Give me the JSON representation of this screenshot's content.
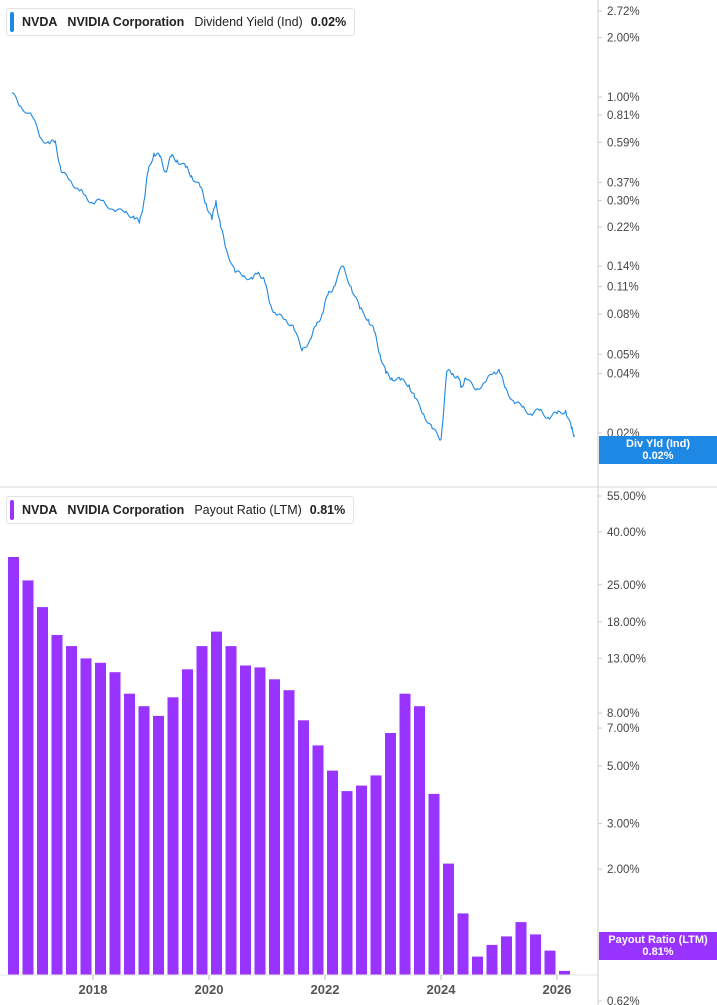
{
  "colors": {
    "yield_line": "#1e88e5",
    "payout_bar": "#9933ff",
    "axis": "#cccccc",
    "divider": "#d9d9d9"
  },
  "panel_top": {
    "ticker": "NVDA",
    "company": "NVIDIA Corporation",
    "metric": "Dividend Yield (Ind)",
    "value": "0.02%",
    "tag_label": "Div Yld (Ind)",
    "tag_value": "0.02%"
  },
  "panel_bottom": {
    "ticker": "NVDA",
    "company": "NVIDIA Corporation",
    "metric": "Payout Ratio (LTM)",
    "value": "0.81%",
    "tag_label": "Payout Ratio (LTM)",
    "tag_value": "0.81%"
  },
  "chart_data": [
    {
      "type": "line",
      "title": "NVDA NVIDIA Corporation Dividend Yield (Ind)",
      "yscale": "log",
      "y_ticks": [
        {
          "value": 2.72,
          "label": "2.72%"
        },
        {
          "value": 2.0,
          "label": "2.00%"
        },
        {
          "value": 1.0,
          "label": "1.00%"
        },
        {
          "value": 0.81,
          "label": "0.81%"
        },
        {
          "value": 0.59,
          "label": "0.59%"
        },
        {
          "value": 0.37,
          "label": "0.37%"
        },
        {
          "value": 0.3,
          "label": "0.30%"
        },
        {
          "value": 0.22,
          "label": "0.22%"
        },
        {
          "value": 0.14,
          "label": "0.14%"
        },
        {
          "value": 0.11,
          "label": "0.11%"
        },
        {
          "value": 0.08,
          "label": "0.08%"
        },
        {
          "value": 0.05,
          "label": "0.05%"
        },
        {
          "value": 0.04,
          "label": "0.04%"
        },
        {
          "value": 0.02,
          "label": "0.02%"
        }
      ],
      "series": [
        {
          "x": [
            2016.6,
            2016.75,
            2016.95,
            2017.1,
            2017.25,
            2017.35,
            2017.45,
            2017.6,
            2017.75,
            2017.85,
            2018.0,
            2018.15,
            2018.35,
            2018.55,
            2018.7,
            2018.8,
            2018.88,
            2018.95,
            2019.05,
            2019.15,
            2019.25,
            2019.35,
            2019.45,
            2019.6,
            2019.7,
            2019.85,
            2019.95,
            2020.05,
            2020.12,
            2020.2,
            2020.3,
            2020.45,
            2020.6,
            2020.75,
            2020.85,
            2020.95,
            2021.05,
            2021.15,
            2021.3,
            2021.45,
            2021.6,
            2021.75,
            2021.85,
            2021.95,
            2022.05,
            2022.15,
            2022.3,
            2022.45,
            2022.6,
            2022.75,
            2022.85,
            2022.95,
            2023.05,
            2023.15,
            2023.3,
            2023.45,
            2023.55,
            2023.7,
            2023.85,
            2024.0,
            2024.1,
            2024.2,
            2024.3,
            2024.35,
            2024.42,
            2024.6,
            2024.75,
            2024.9,
            2025.0,
            2025.1,
            2025.25,
            2025.4,
            2025.55,
            2025.7,
            2025.85,
            2026.0,
            2026.15,
            2026.25,
            2026.3
          ],
          "y": [
            1.05,
            0.9,
            0.8,
            0.62,
            0.58,
            0.6,
            0.42,
            0.38,
            0.34,
            0.32,
            0.29,
            0.3,
            0.27,
            0.26,
            0.25,
            0.23,
            0.3,
            0.42,
            0.52,
            0.5,
            0.42,
            0.5,
            0.48,
            0.44,
            0.4,
            0.35,
            0.29,
            0.24,
            0.3,
            0.22,
            0.17,
            0.13,
            0.125,
            0.12,
            0.13,
            0.12,
            0.09,
            0.08,
            0.075,
            0.07,
            0.052,
            0.06,
            0.07,
            0.08,
            0.1,
            0.11,
            0.14,
            0.11,
            0.085,
            0.075,
            0.065,
            0.05,
            0.04,
            0.038,
            0.037,
            0.035,
            0.03,
            0.025,
            0.021,
            0.0185,
            0.041,
            0.04,
            0.038,
            0.034,
            0.038,
            0.033,
            0.036,
            0.04,
            0.042,
            0.034,
            0.029,
            0.027,
            0.025,
            0.026,
            0.024,
            0.025,
            0.026,
            0.021,
            0.0195
          ]
        }
      ]
    },
    {
      "type": "bar",
      "title": "NVDA NVIDIA Corporation Payout Ratio (LTM)",
      "yscale": "log",
      "y_ticks": [
        {
          "value": 55.0,
          "label": "55.00%"
        },
        {
          "value": 40.0,
          "label": "40.00%"
        },
        {
          "value": 25.0,
          "label": "25.00%"
        },
        {
          "value": 18.0,
          "label": "18.00%"
        },
        {
          "value": 13.0,
          "label": "13.00%"
        },
        {
          "value": 8.0,
          "label": "8.00%"
        },
        {
          "value": 7.0,
          "label": "7.00%"
        },
        {
          "value": 5.0,
          "label": "5.00%"
        },
        {
          "value": 3.0,
          "label": "3.00%"
        },
        {
          "value": 2.0,
          "label": "2.00%"
        },
        {
          "value": 1.0,
          "label": "1.00%"
        },
        {
          "value": 0.62,
          "label": "0.62%"
        }
      ],
      "x_ticks": [
        {
          "value": 2018,
          "label": "2018"
        },
        {
          "value": 2020,
          "label": "2020"
        },
        {
          "value": 2022,
          "label": "2022"
        },
        {
          "value": 2024,
          "label": "2024"
        },
        {
          "value": 2026,
          "label": "2026"
        }
      ],
      "series": [
        {
          "x": [
            2016.63,
            2016.88,
            2017.13,
            2017.38,
            2017.63,
            2017.88,
            2018.13,
            2018.38,
            2018.63,
            2018.88,
            2019.13,
            2019.38,
            2019.63,
            2019.88,
            2020.13,
            2020.38,
            2020.63,
            2020.88,
            2021.13,
            2021.38,
            2021.63,
            2021.88,
            2022.13,
            2022.38,
            2022.63,
            2022.88,
            2023.13,
            2023.38,
            2023.63,
            2023.88,
            2024.13,
            2024.38,
            2024.63,
            2024.88,
            2025.13,
            2025.38,
            2025.63,
            2025.88,
            2026.13
          ],
          "values": [
            32.0,
            26.0,
            20.5,
            16.0,
            14.5,
            13.0,
            12.5,
            11.5,
            9.5,
            8.5,
            7.8,
            9.2,
            11.8,
            14.5,
            16.5,
            14.5,
            12.2,
            12.0,
            10.8,
            9.8,
            7.5,
            6.0,
            4.8,
            4.0,
            4.2,
            4.6,
            6.7,
            9.5,
            8.5,
            3.9,
            2.1,
            1.35,
            0.92,
            1.02,
            1.1,
            1.25,
            1.12,
            0.97,
            0.81
          ]
        }
      ]
    }
  ]
}
